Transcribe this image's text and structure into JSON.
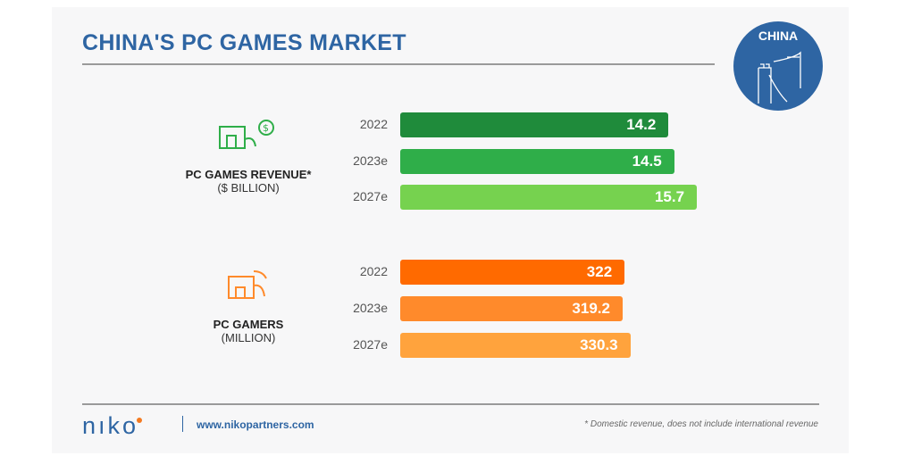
{
  "title": "CHINA'S PC GAMES MARKET",
  "badge": "CHINA",
  "footer": {
    "logo": "NIKO",
    "url": "www.nikopartners.com",
    "note": "* Domestic revenue, does not include international revenue"
  },
  "chart_data": [
    {
      "type": "bar",
      "title": "PC GAMES REVENUE*",
      "subtitle": "($ BILLION)",
      "categories": [
        "2022",
        "2023e",
        "2027e"
      ],
      "values": [
        14.2,
        14.5,
        15.7
      ],
      "labels": [
        "14.2",
        "14.5",
        "15.7"
      ],
      "colors": [
        "#1f8b3b",
        "#2fae49",
        "#76d24f"
      ]
    },
    {
      "type": "bar",
      "title": "PC GAMERS",
      "subtitle": "(MILLION)",
      "categories": [
        "2022",
        "2023e",
        "2027e"
      ],
      "values": [
        322,
        319.2,
        330.3
      ],
      "labels": [
        "322",
        "319.2",
        "330.3"
      ],
      "colors": [
        "#ff6a00",
        "#ff8a2b",
        "#ffa33d"
      ]
    }
  ]
}
